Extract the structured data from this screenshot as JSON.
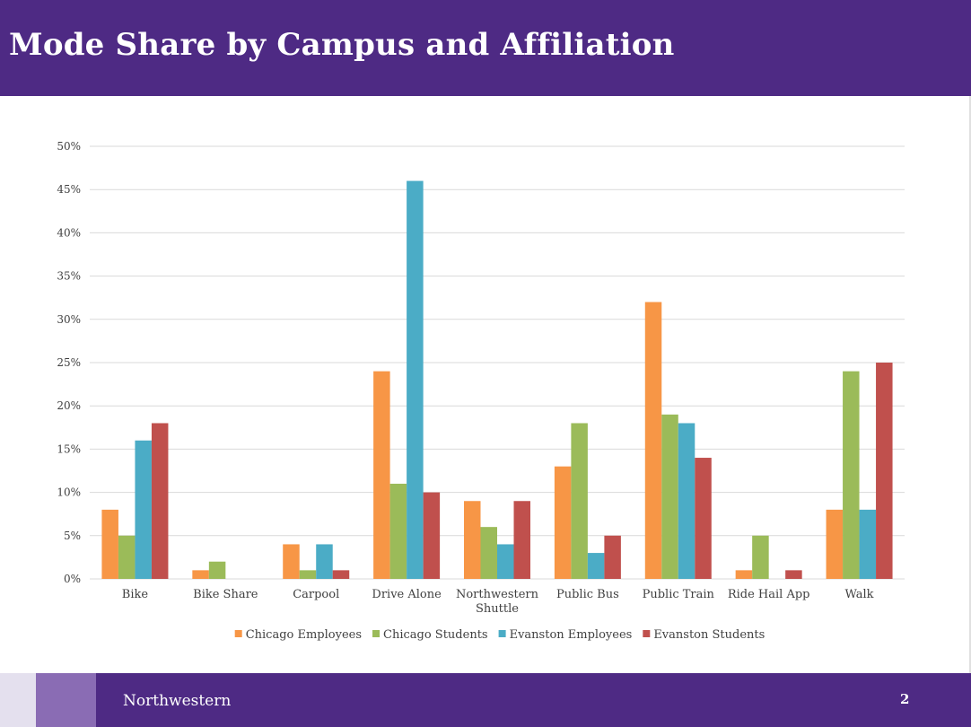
{
  "slide": {
    "title": "Mode Share by Campus and Affiliation",
    "footer_brand": "Northwestern",
    "page_number": "2"
  },
  "colors": {
    "brand_purple": "#4e2a84",
    "footer_light": "#e4e0ee",
    "footer_mid": "#8a6cb4",
    "grid": "#d9d9d9"
  },
  "chart_data": {
    "type": "bar",
    "title": "",
    "xlabel": "",
    "ylabel": "",
    "ylim": [
      0,
      50
    ],
    "y_ticks": [
      "0%",
      "5%",
      "10%",
      "15%",
      "20%",
      "25%",
      "30%",
      "35%",
      "40%",
      "45%",
      "50%"
    ],
    "grid": true,
    "legend_position": "bottom",
    "categories": [
      [
        "Bike"
      ],
      [
        "Bike Share"
      ],
      [
        "Carpool"
      ],
      [
        "Drive Alone"
      ],
      [
        "Northwestern",
        "Shuttle"
      ],
      [
        "Public Bus"
      ],
      [
        "Public Train"
      ],
      [
        "Ride Hail App"
      ],
      [
        "Walk"
      ]
    ],
    "series": [
      {
        "name": "Chicago Employees",
        "color": "#f79646",
        "values": [
          8,
          1,
          4,
          24,
          9,
          13,
          32,
          1,
          8
        ]
      },
      {
        "name": "Chicago Students",
        "color": "#9bbb59",
        "values": [
          5,
          2,
          1,
          11,
          6,
          18,
          19,
          5,
          24
        ]
      },
      {
        "name": "Evanston Employees",
        "color": "#4bacc6",
        "values": [
          16,
          0,
          4,
          46,
          4,
          3,
          18,
          0,
          8
        ]
      },
      {
        "name": "Evanston Students",
        "color": "#c0504d",
        "values": [
          18,
          0,
          1,
          10,
          9,
          5,
          14,
          1,
          25
        ]
      }
    ]
  }
}
